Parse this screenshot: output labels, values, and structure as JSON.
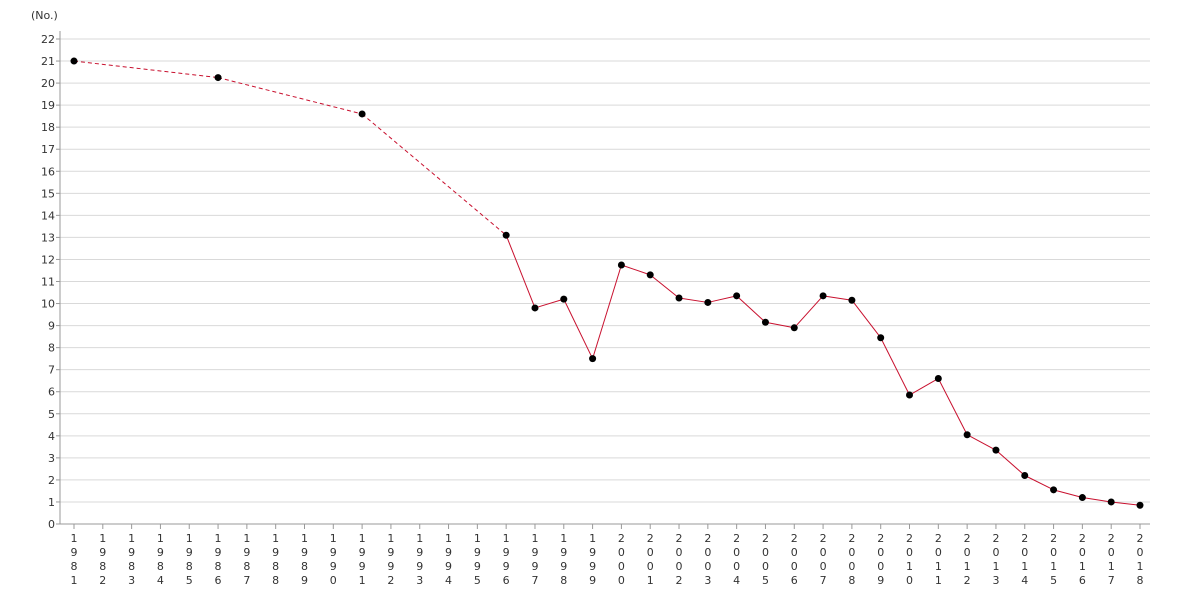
{
  "chart_data": {
    "type": "line",
    "unit_label": "(No.)",
    "ylim": [
      0,
      22
    ],
    "y_ticks": [
      0,
      1,
      2,
      3,
      4,
      5,
      6,
      7,
      8,
      9,
      10,
      11,
      12,
      13,
      14,
      15,
      16,
      17,
      18,
      19,
      20,
      21,
      22
    ],
    "grid": true,
    "x": [
      1981,
      1982,
      1983,
      1984,
      1985,
      1986,
      1987,
      1988,
      1989,
      1990,
      1991,
      1992,
      1993,
      1994,
      1995,
      1996,
      1997,
      1998,
      1999,
      2000,
      2001,
      2002,
      2003,
      2004,
      2005,
      2006,
      2007,
      2008,
      2009,
      2010,
      2011,
      2012,
      2013,
      2014,
      2015,
      2016,
      2017,
      2018
    ],
    "points": [
      {
        "x": 1981,
        "y": 21.0
      },
      {
        "x": 1986,
        "y": 20.25
      },
      {
        "x": 1991,
        "y": 18.6
      },
      {
        "x": 1996,
        "y": 13.1
      },
      {
        "x": 1997,
        "y": 9.8
      },
      {
        "x": 1998,
        "y": 10.2
      },
      {
        "x": 1999,
        "y": 7.5
      },
      {
        "x": 2000,
        "y": 11.75
      },
      {
        "x": 2001,
        "y": 11.3
      },
      {
        "x": 2002,
        "y": 10.25
      },
      {
        "x": 2003,
        "y": 10.05
      },
      {
        "x": 2004,
        "y": 10.35
      },
      {
        "x": 2005,
        "y": 9.15
      },
      {
        "x": 2006,
        "y": 8.9
      },
      {
        "x": 2007,
        "y": 10.35
      },
      {
        "x": 2008,
        "y": 10.15
      },
      {
        "x": 2009,
        "y": 8.45
      },
      {
        "x": 2010,
        "y": 5.85
      },
      {
        "x": 2011,
        "y": 6.6
      },
      {
        "x": 2012,
        "y": 4.05
      },
      {
        "x": 2013,
        "y": 3.35
      },
      {
        "x": 2014,
        "y": 2.2
      },
      {
        "x": 2015,
        "y": 1.55
      },
      {
        "x": 2016,
        "y": 1.2
      },
      {
        "x": 2017,
        "y": 1.0
      },
      {
        "x": 2018,
        "y": 0.85
      }
    ],
    "dashed_until": 1996,
    "colors": {
      "line": "#c8102e",
      "marker": "#000000",
      "grid": "#d9d9d9",
      "axis": "#999999"
    }
  }
}
